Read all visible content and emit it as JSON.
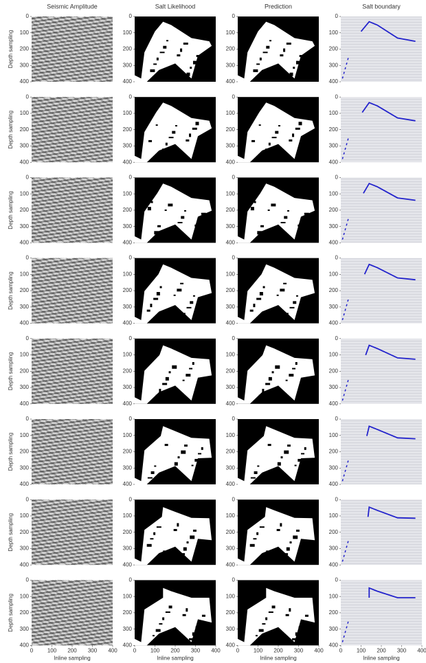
{
  "figure": {
    "columns": [
      "Seismic Amplitude",
      "Salt Likelihood",
      "Prediction",
      "Salt boundary"
    ],
    "y_label": "Depth sampling",
    "x_label": "Inline sampling",
    "xlim": [
      0,
      400
    ],
    "ylim": [
      0,
      400
    ],
    "xticks": [
      0,
      100,
      200,
      300,
      400
    ],
    "yticks": [
      0,
      100,
      200,
      300,
      400
    ]
  }
}
